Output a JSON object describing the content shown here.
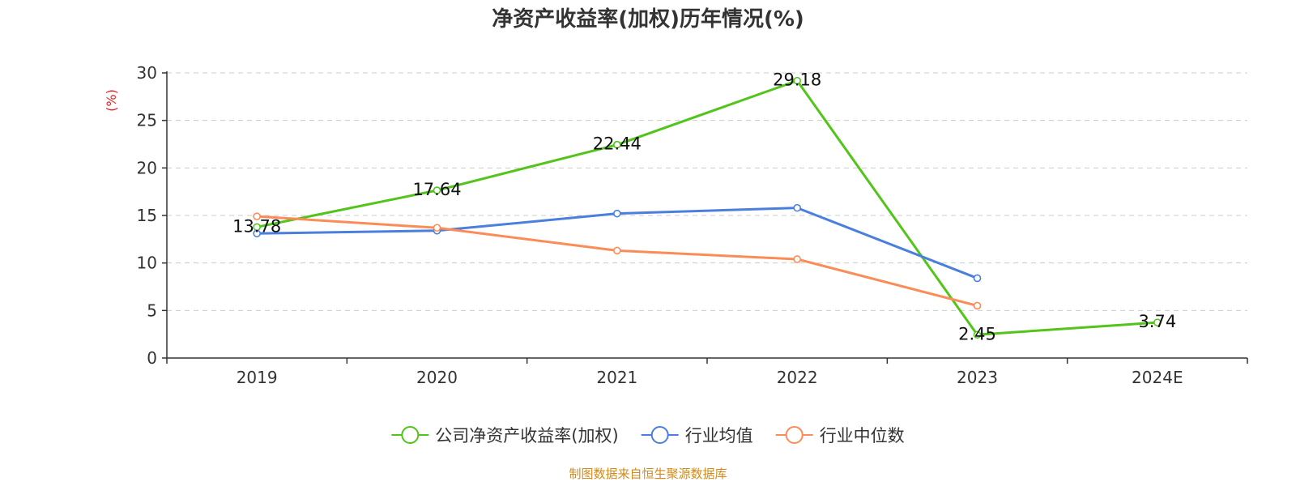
{
  "chart_data": {
    "type": "line",
    "title": "净资产收益率(加权)历年情况(%)",
    "ylabel": "(%)",
    "categories": [
      "2019",
      "2020",
      "2021",
      "2022",
      "2023",
      "2024E"
    ],
    "ylim": [
      0,
      30
    ],
    "yticks": [
      0,
      5,
      10,
      15,
      20,
      25,
      30
    ],
    "grid": true,
    "legend_position": "bottom",
    "series": [
      {
        "name": "公司净资产收益率(加权)",
        "color": "#52c41a",
        "values": [
          13.78,
          17.64,
          22.44,
          29.18,
          2.45,
          3.74
        ],
        "labels": [
          "13.78",
          "17.64",
          "22.44",
          "29.18",
          "2.45",
          "3.74"
        ]
      },
      {
        "name": "行业均值",
        "color": "#4a7fde",
        "values": [
          13.1,
          13.4,
          15.2,
          15.8,
          8.4,
          null
        ]
      },
      {
        "name": "行业中位数",
        "color": "#fb8c57",
        "values": [
          14.9,
          13.7,
          11.3,
          10.4,
          5.5,
          null
        ]
      }
    ]
  },
  "source": {
    "text": "制图数据来自恒生聚源数据库",
    "color": "#d48a1a"
  },
  "ylabel_color": "#e02020"
}
